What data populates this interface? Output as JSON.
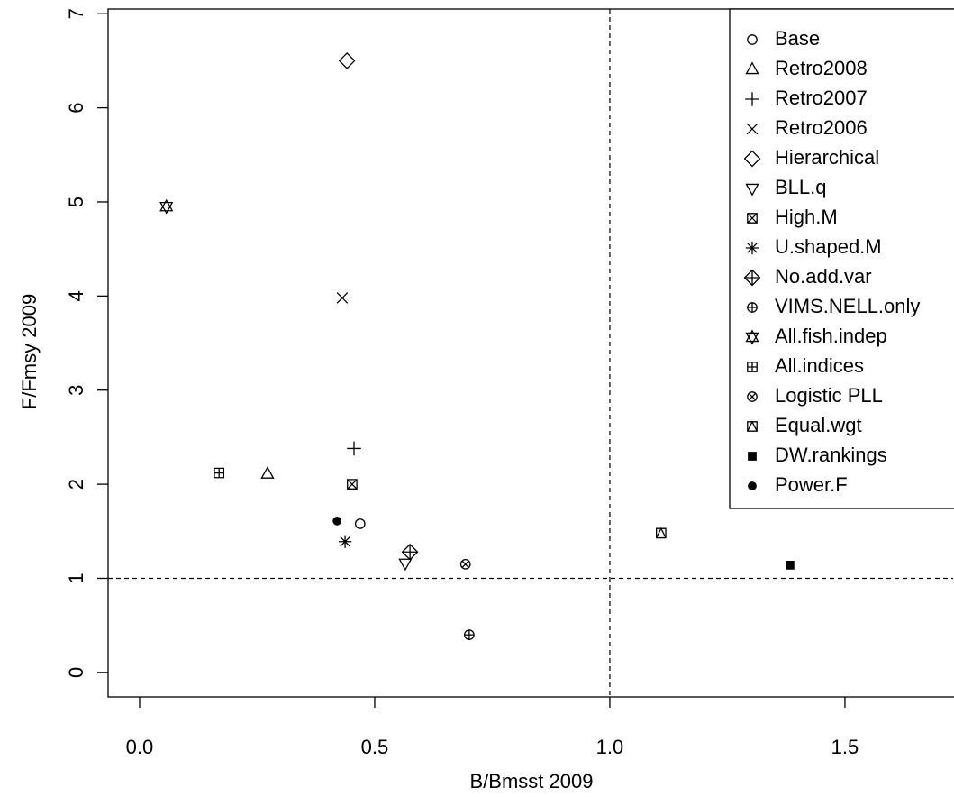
{
  "chart_data": {
    "type": "scatter",
    "x_label": "B/Bmsst 2009",
    "y_label": "F/Fmsy 2009",
    "color": "#000000",
    "xlim": [
      -0.067,
      1.73
    ],
    "ylim": [
      -0.26,
      7.05
    ],
    "xticks": [
      {
        "value": 0,
        "label": "0.0"
      },
      0.5,
      {
        "value": 1,
        "label": "1.0"
      },
      1.5
    ],
    "yticks": [
      0,
      1,
      2,
      3,
      4,
      5,
      6,
      7
    ],
    "reference_lines": {
      "x": 1,
      "y": 1
    },
    "legend": "top-right",
    "series": [
      {
        "name": "Base",
        "marker": "circle",
        "x": [
          0.469
        ],
        "values": [
          1.58
        ]
      },
      {
        "name": "Retro2008",
        "marker": "triangle",
        "x": [
          0.272
        ],
        "values": [
          2.11
        ]
      },
      {
        "name": "Retro2007",
        "marker": "plus",
        "x": [
          0.456
        ],
        "values": [
          2.38
        ]
      },
      {
        "name": "Retro2006",
        "marker": "x",
        "x": [
          0.431
        ],
        "values": [
          3.98
        ]
      },
      {
        "name": "Hierarchical",
        "marker": "diamond",
        "x": [
          0.441
        ],
        "values": [
          6.5
        ]
      },
      {
        "name": "BLL.q",
        "marker": "triangle-down",
        "x": [
          0.565
        ],
        "values": [
          1.16
        ]
      },
      {
        "name": "High.M",
        "marker": "box-x",
        "x": [
          0.452
        ],
        "values": [
          2.0
        ]
      },
      {
        "name": "U.shaped.M",
        "marker": "asterisk",
        "x": [
          0.437
        ],
        "values": [
          1.39
        ]
      },
      {
        "name": "No.add.var",
        "marker": "diamond-plus",
        "x": [
          0.575
        ],
        "values": [
          1.28
        ]
      },
      {
        "name": "VIMS.NELL.only",
        "marker": "circle-plus",
        "x": [
          0.701
        ],
        "values": [
          0.4
        ]
      },
      {
        "name": "All.fish.indep",
        "marker": "star-of-david",
        "x": [
          0.057
        ],
        "values": [
          4.95
        ]
      },
      {
        "name": "All.indices",
        "marker": "box-plus",
        "x": [
          0.169
        ],
        "values": [
          2.12
        ]
      },
      {
        "name": "Logistic PLL",
        "marker": "circle-x",
        "x": [
          0.693
        ],
        "values": [
          1.15
        ]
      },
      {
        "name": "Equal.wgt",
        "marker": "box-triangle",
        "x": [
          1.109
        ],
        "values": [
          1.48
        ]
      },
      {
        "name": "DW.rankings",
        "marker": "square-filled",
        "x": [
          1.383
        ],
        "values": [
          1.14
        ]
      },
      {
        "name": "Power.F",
        "marker": "circle-filled",
        "x": [
          0.42
        ],
        "values": [
          1.61
        ]
      }
    ]
  }
}
